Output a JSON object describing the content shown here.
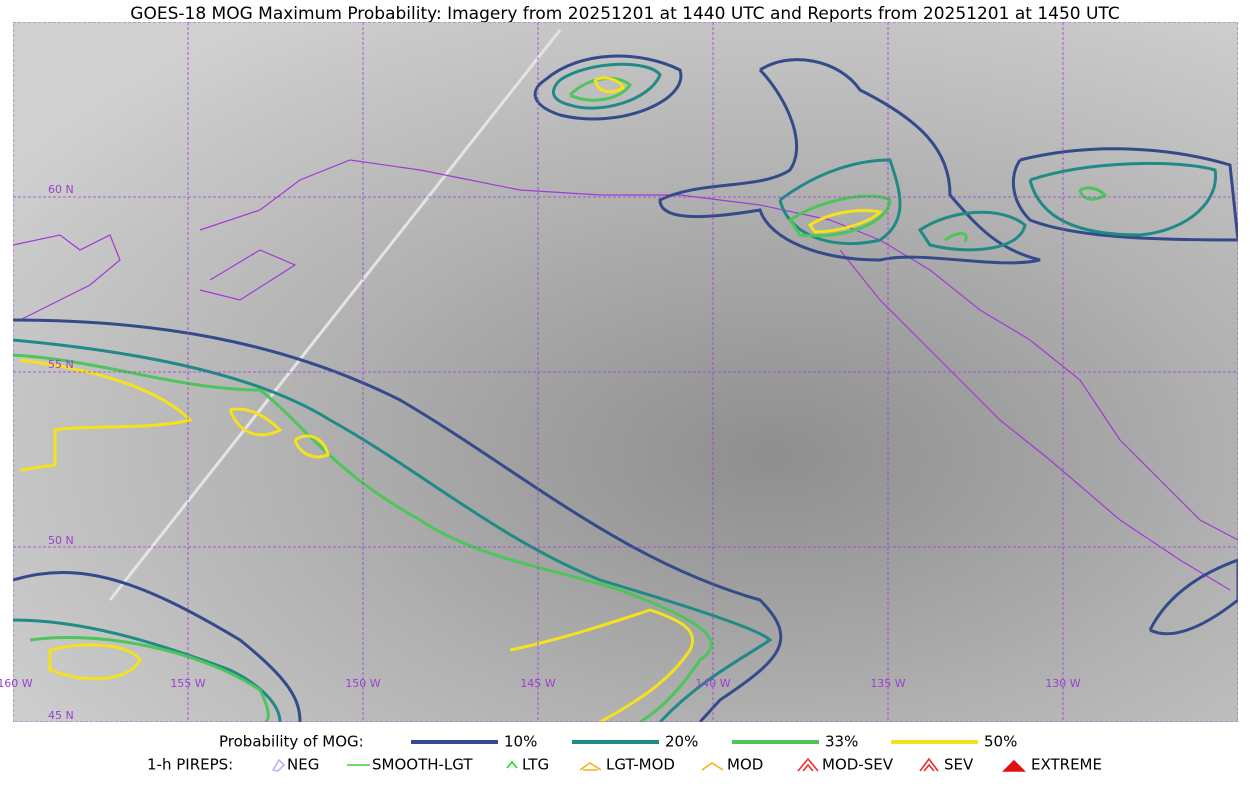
{
  "header": {
    "title": "GOES-18 MOG Maximum Probability: Imagery from 20251201 at 1440 UTC and Reports from 20251201 at 1450 UTC"
  },
  "map": {
    "lat_labels": [
      "60 N",
      "55 N",
      "50 N",
      "45 N"
    ],
    "lon_labels": [
      "160 W",
      "155 W",
      "150 W",
      "145 W",
      "140 W",
      "135 W",
      "130 W"
    ]
  },
  "legend": {
    "probability": {
      "label": "Probability of MOG:",
      "items": [
        {
          "label": "10%",
          "color": "#344a8a"
        },
        {
          "label": "20%",
          "color": "#1f8a86"
        },
        {
          "label": "33%",
          "color": "#4dc55a"
        },
        {
          "label": "50%",
          "color": "#f5e11e"
        }
      ]
    },
    "pireps": {
      "label": "1-h PIREPS:",
      "items": [
        {
          "label": "NEG",
          "color": "#b8b4f0"
        },
        {
          "label": "SMOOTH-LGT",
          "color": "#3ccf3c"
        },
        {
          "label": "LTG",
          "color": "#22dd22"
        },
        {
          "label": "LGT-MOD",
          "color": "#f5b020"
        },
        {
          "label": "MOD",
          "color": "#f5b020"
        },
        {
          "label": "MOD-SEV",
          "color": "#e83030"
        },
        {
          "label": "SEV",
          "color": "#e83030"
        },
        {
          "label": "EXTREME",
          "color": "#e01010"
        }
      ]
    }
  }
}
